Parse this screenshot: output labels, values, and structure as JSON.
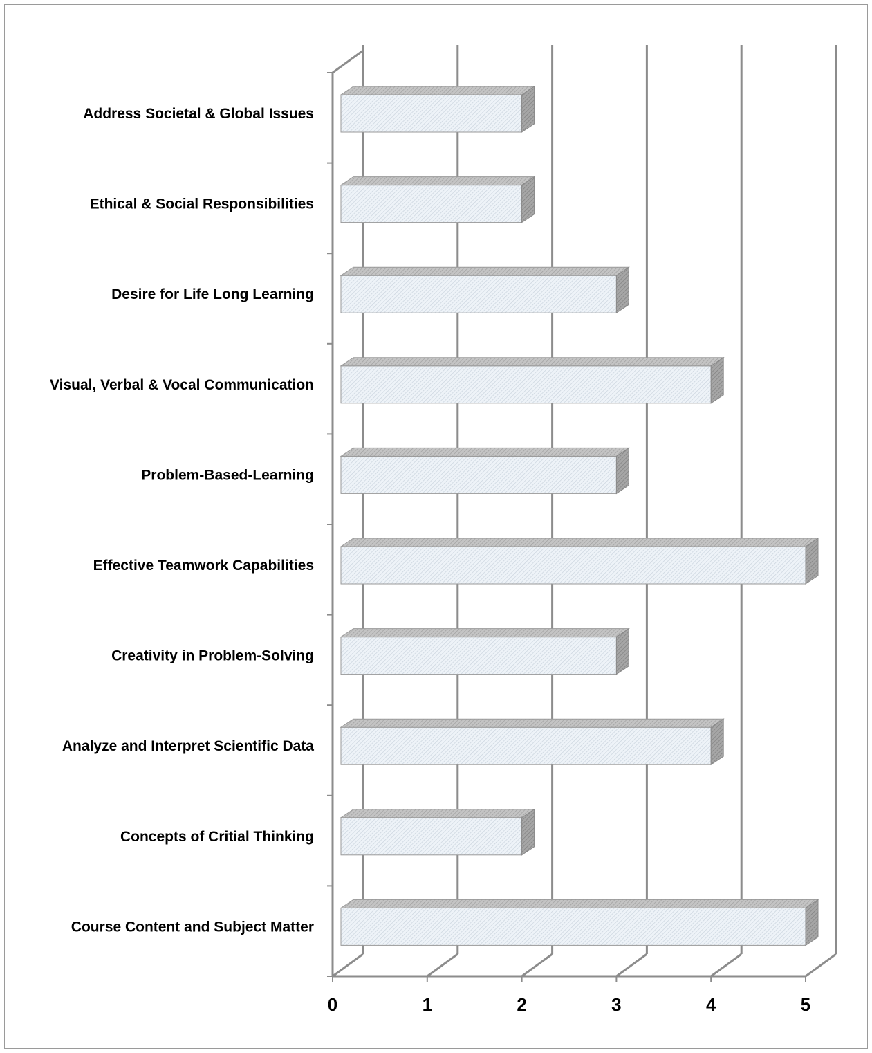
{
  "chart_data": {
    "type": "bar",
    "orientation": "horizontal",
    "style": "3d-clustered",
    "categories": [
      "Course Content and Subject  Matter",
      "Concepts of Critial  Thinking",
      "Analyze and Interpret Scientific Data",
      "Creativity in Problem-Solving",
      "Effective Teamwork  Capabilities",
      "Problem-Based-Learning",
      "Visual, Verbal & Vocal Communication",
      "Desire for Life Long Learning",
      "Ethical & Social  Responsibilities",
      "Address Societal & Global Issues"
    ],
    "values": [
      5,
      2,
      4,
      3,
      5,
      3,
      4,
      3,
      2,
      2
    ],
    "xlim": [
      0,
      5
    ],
    "xticks": [
      "0",
      "1",
      "2",
      "3",
      "4",
      "5"
    ],
    "grid": "vertical",
    "legend": "none",
    "colors": {
      "bar_front": "#eef3f8",
      "bar_hatch": "#c9d3dd",
      "bar_top": "#b9b9b9",
      "bar_side": "#9a9a9a",
      "grid": "#8c8c8c"
    }
  }
}
